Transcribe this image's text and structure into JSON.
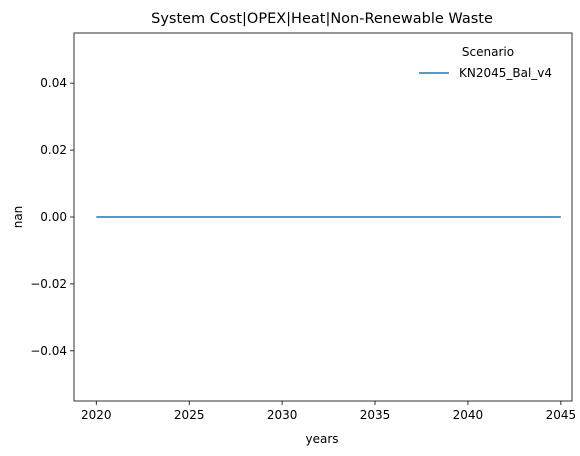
{
  "chart_data": {
    "type": "line",
    "title": "System Cost|OPEX|Heat|Non-Renewable Waste",
    "xlabel": "years",
    "ylabel": "nan",
    "xlim": [
      2018.8,
      2045.6
    ],
    "ylim": [
      -0.055,
      0.055
    ],
    "x_ticks": [
      2020,
      2025,
      2030,
      2035,
      2040,
      2045
    ],
    "y_ticks": [
      -0.04,
      -0.02,
      0.0,
      0.02,
      0.04
    ],
    "x_tick_labels": [
      "2020",
      "2025",
      "2030",
      "2035",
      "2040",
      "2045"
    ],
    "y_tick_labels": [
      "−0.04",
      "−0.02",
      "0.00",
      "0.02",
      "0.04"
    ],
    "grid": false,
    "legend": {
      "title": "Scenario",
      "position": "top-right"
    },
    "series": [
      {
        "name": "KN2045_Bal_v4",
        "color": "#1f77b4",
        "x": [
          2020,
          2025,
          2030,
          2035,
          2040,
          2045
        ],
        "y": [
          0,
          0,
          0,
          0,
          0,
          0
        ]
      }
    ]
  }
}
